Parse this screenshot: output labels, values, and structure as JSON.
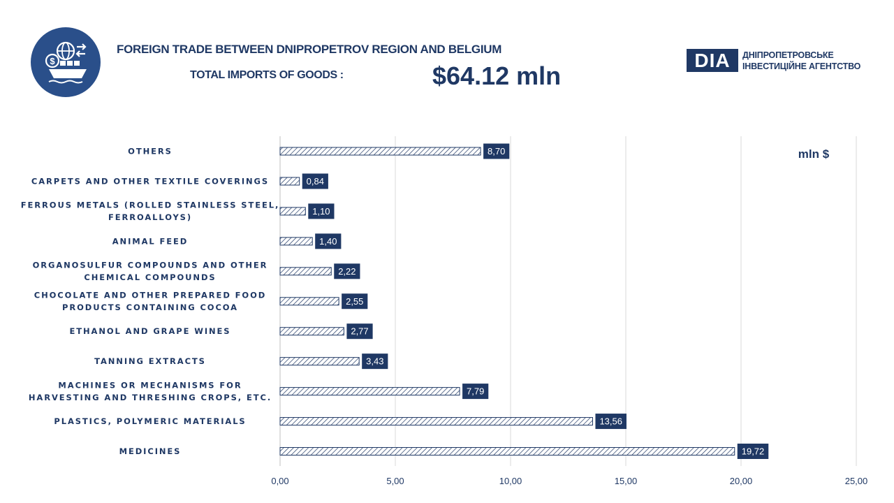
{
  "header": {
    "title": "FOREIGN TRADE BETWEEN DNIPROPETROV REGION AND BELGIUM",
    "subtitle": "TOTAL IMPORTS OF GOODS :",
    "total": "$64.12 mln",
    "logo_icon": "trade-globe-ship-icon"
  },
  "brand": {
    "mark": "DIA",
    "line1": "ДНІПРОПЕТРОВСЬКЕ",
    "line2": "ІНВЕСТИЦІЙНЕ АГЕНТСТВО"
  },
  "colors": {
    "primary": "#1f3864",
    "logo_circle": "#2a4f8a",
    "gridline": "#d9d9d9",
    "bar_outline": "#1f3864",
    "label_box": "#1f3864"
  },
  "chart_data": {
    "type": "bar",
    "orientation": "horizontal",
    "unit_label": "mln $",
    "categories": [
      [
        "OTHERS"
      ],
      [
        "CARPETS AND OTHER TEXTILE COVERINGS"
      ],
      [
        "FERROUS METALS (ROLLED STAINLESS STEEL,",
        "FERROALLOYS)"
      ],
      [
        "ANIMAL FEED"
      ],
      [
        "ORGANOSULFUR COMPOUNDS AND OTHER",
        "CHEMICAL COMPOUNDS"
      ],
      [
        "CHOCOLATE AND OTHER PREPARED FOOD",
        "PRODUCTS CONTAINING COCOA"
      ],
      [
        "ETHANOL AND GRAPE WINES"
      ],
      [
        "TANNING EXTRACTS"
      ],
      [
        "MACHINES OR MECHANISMS FOR",
        "HARVESTING AND THRESHING CROPS, ETC."
      ],
      [
        "PLASTICS, POLYMERIC MATERIALS"
      ],
      [
        "MEDICINES"
      ]
    ],
    "values": [
      8.7,
      0.84,
      1.1,
      1.4,
      2.22,
      2.55,
      2.77,
      3.43,
      7.79,
      13.56,
      19.72
    ],
    "value_labels": [
      "8,70",
      "0,84",
      "1,10",
      "1,40",
      "2,22",
      "2,55",
      "2,77",
      "3,43",
      "7,79",
      "13,56",
      "19,72"
    ],
    "xlim": [
      0,
      25
    ],
    "x_ticks": [
      0,
      5,
      10,
      15,
      20,
      25
    ],
    "x_tick_labels": [
      "0,00",
      "5,00",
      "10,00",
      "15,00",
      "20,00",
      "25,00"
    ],
    "grid": true,
    "bar_fill": "diagonal-hatch"
  }
}
